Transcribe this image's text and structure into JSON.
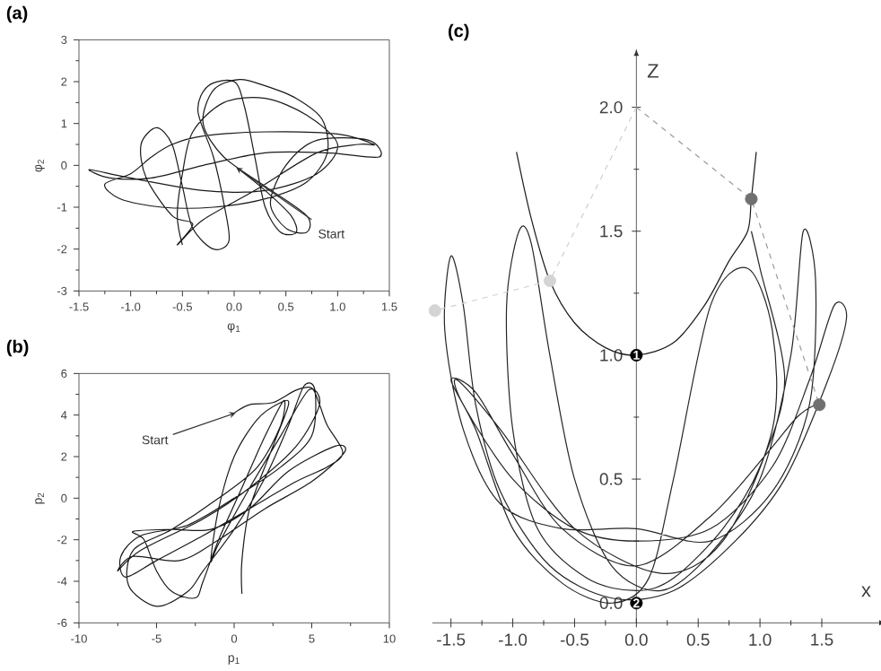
{
  "chart_data": [
    {
      "type": "line",
      "title": "(a)",
      "xlabel": "φ$_{1}$",
      "ylabel": "φ$_{2}$",
      "xlim": [
        -1.5,
        1.5
      ],
      "ylim": [
        -3,
        3
      ],
      "xticks": [
        -1.5,
        {
          "value": -1,
          "label": "-1.0"
        },
        -0.5,
        {
          "value": 0,
          "label": "0.0"
        },
        0.5,
        {
          "value": 1,
          "label": "1.0"
        },
        1.5
      ],
      "yticks": [
        -3,
        -2,
        -1,
        0,
        1,
        2,
        3
      ],
      "annotations": [
        {
          "text": "Start",
          "x": 0.02,
          "y": -0.05
        }
      ],
      "series": [
        {
          "color": "#1a1a1a",
          "x": [
            0.05,
            0.3,
            0.55,
            0.6,
            0.45,
            0.3,
            0.2,
            0.1,
            0.0,
            -0.25,
            -0.35,
            -0.2,
            -0.1,
            -0.05,
            -0.2,
            -0.4,
            -0.5,
            -0.6,
            -0.75,
            -0.9,
            -0.85,
            -0.6,
            -0.4,
            -0.55,
            -0.3,
            0.2,
            0.8,
            1.2,
            1.35,
            1.0,
            0.3,
            -0.3,
            -0.6,
            -0.8,
            -1.0,
            -1.25,
            -1.1,
            -0.7,
            -0.2,
            0.3,
            0.7,
            0.9,
            0.85,
            0.6,
            0.3,
            0.05,
            -0.2,
            -0.3,
            -0.1,
            0.3,
            0.7,
            0.7,
            0.5,
            0.35,
            0.5,
            0.8,
            1.3,
            1.4,
            0.9,
            0.3,
            -0.3,
            -0.8,
            -1.2,
            -1.4,
            -1.0,
            -0.3,
            0.3,
            0.8,
            1.0,
            0.7,
            0.3,
            -0.1,
            -0.4,
            -0.5,
            -0.55,
            -0.5
          ],
          "values": [
            -0.1,
            -0.6,
            -1.2,
            -1.6,
            -1.6,
            -1.0,
            0.2,
            1.4,
            2.0,
            1.9,
            1.3,
            0.2,
            -0.9,
            -1.8,
            -2.0,
            -1.5,
            -0.5,
            0.5,
            0.9,
            0.5,
            -0.3,
            -1.2,
            -1.4,
            -1.9,
            -1.3,
            -0.6,
            0.3,
            0.5,
            0.5,
            0.75,
            0.8,
            0.7,
            0.5,
            0.2,
            -0.2,
            -0.45,
            -0.8,
            -1.0,
            -1.0,
            -0.8,
            -0.4,
            0.3,
            1.1,
            1.6,
            1.9,
            2.05,
            1.8,
            1.0,
            0.2,
            -0.5,
            -1.2,
            -1.6,
            -1.5,
            -0.9,
            0.0,
            0.6,
            0.6,
            0.2,
            0.3,
            0.3,
            0.0,
            -0.3,
            -0.3,
            -0.1,
            -0.3,
            -0.6,
            -0.6,
            -0.2,
            0.5,
            1.2,
            1.6,
            1.5,
            0.8,
            -0.2,
            -1.2,
            -1.9
          ]
        }
      ]
    },
    {
      "type": "line",
      "title": "(b)",
      "xlabel": "p$_{1}$",
      "ylabel": "p$_{2}$",
      "xlim": [
        -10,
        10
      ],
      "ylim": [
        -6,
        6
      ],
      "xticks": [
        -10,
        -5,
        0,
        5,
        10
      ],
      "yticks": [
        -6,
        -4,
        -2,
        0,
        2,
        4,
        6
      ],
      "annotations": [
        {
          "text": "Start",
          "x": 0.1,
          "y": 4.1
        }
      ],
      "series": [
        {
          "color": "#1a1a1a",
          "x": [
            0,
            1,
            2.5,
            4,
            5,
            5.5,
            6,
            7,
            6,
            4,
            1,
            -2,
            -5,
            -7,
            -7.3,
            -6,
            -3,
            0,
            3,
            5,
            5.2,
            4.5,
            3.5,
            2,
            0,
            -2,
            -3,
            -5,
            -6.8,
            -6.5,
            -4,
            -1,
            1.5,
            3,
            3.2,
            2,
            0.5,
            -1,
            -2,
            -2.5,
            -4,
            -5,
            -5.8,
            -6.5,
            -4,
            -1.5,
            1,
            3.5,
            6.5,
            7.1,
            5,
            2,
            -1,
            -3.5,
            -6.5,
            -7.5,
            -6,
            -2,
            1,
            4,
            5.5,
            4.8,
            3,
            1,
            -1,
            -1.5,
            -1,
            0,
            1.5,
            3,
            3.5,
            2.5,
            1,
            0.5,
            0.5
          ],
          "values": [
            4.1,
            4.5,
            4.6,
            5.2,
            5.3,
            4.5,
            3.5,
            2.2,
            1.5,
            0.8,
            -0.5,
            -1.8,
            -3,
            -3.8,
            -2.8,
            -1.8,
            -1.3,
            0,
            1.5,
            3,
            5.2,
            5.4,
            3.5,
            1,
            -1.5,
            -3.5,
            -4.5,
            -5.2,
            -4.2,
            -2.5,
            -1.5,
            0,
            1.5,
            3.5,
            4.7,
            3,
            0.5,
            -2,
            -4,
            -4.8,
            -4.5,
            -3.5,
            -2,
            -1.6,
            -1.5,
            -1.5,
            -0.5,
            1.3,
            2.5,
            2.2,
            0.8,
            -0.5,
            -2,
            -3,
            -2.8,
            -3.5,
            -2.5,
            -1,
            0.5,
            2.5,
            4.5,
            5.2,
            3,
            0.5,
            -2.2,
            -3,
            -0.5,
            2,
            3.8,
            4.6,
            4.5,
            2.5,
            -0.5,
            -3,
            -4.6
          ]
        }
      ]
    },
    {
      "type": "line",
      "title": "(c)",
      "xlabel": "x",
      "ylabel": "Z",
      "xlim": [
        -1.65,
        1.95
      ],
      "ylim": [
        -0.08,
        2.2
      ],
      "xticks": [
        -1.5,
        {
          "value": -1,
          "label": "-1.0"
        },
        -0.5,
        {
          "value": 0,
          "label": "0.0"
        },
        0.5,
        {
          "value": 1,
          "label": "1.0"
        },
        1.5
      ],
      "yticks": [
        {
          "value": 0,
          "label": "0.0"
        },
        0.5,
        {
          "value": 1,
          "label": "1.0"
        },
        1.5,
        {
          "value": 2,
          "label": "2.0"
        }
      ],
      "annotations": [
        {
          "text": "1",
          "x": 0,
          "y": 1
        },
        {
          "text": "2",
          "x": 0,
          "y": 0
        }
      ],
      "series": [
        {
          "type": "line",
          "color": "#262626",
          "x": [
            0.93,
            1.0,
            1.2,
            1.0,
            0.7,
            0.3,
            0,
            -0.4,
            -0.8,
            -1.0,
            -1.05,
            -0.95,
            -0.85,
            -0.7,
            -0.5,
            -0.2,
            0.2,
            0.6,
            1.0,
            1.25,
            1.35,
            1.45,
            1.4,
            1.1,
            0.6,
            0,
            -0.6,
            -1.1,
            -1.4,
            -1.55,
            -1.5,
            -1.4,
            -1.3,
            -1.1,
            -0.7,
            -0.2,
            0.3,
            0.8,
            1.2,
            1.55,
            1.7,
            1.6,
            1.4,
            1.1,
            0.6,
            0,
            -0.5,
            -1.0,
            -1.4,
            -1.45,
            -1.1,
            -0.5,
            0.2,
            0.7,
            1.1,
            1.1,
            0.9,
            0.6,
            0.3,
            0.1,
            -0.2,
            -0.6,
            -1.0,
            -1.3,
            -1.5,
            -1.3,
            -1.0,
            -0.6,
            0,
            0.6,
            1.05,
            1.3,
            1.45
          ],
          "values": [
            1.5,
            1.35,
            0.9,
            0.55,
            0.3,
            0.1,
            0.05,
            0.1,
            0.3,
            0.7,
            1.2,
            1.5,
            1.45,
            1.0,
            0.5,
            0.15,
            0.05,
            0.2,
            0.5,
            1.0,
            1.5,
            1.3,
            0.8,
            0.45,
            0.25,
            0.3,
            0.3,
            0.4,
            0.7,
            1.1,
            1.4,
            1.2,
            0.8,
            0.45,
            0.15,
            0.02,
            0.05,
            0.25,
            0.5,
            0.9,
            1.15,
            1.2,
            0.9,
            0.55,
            0.3,
            0.25,
            0.3,
            0.5,
            0.8,
            0.9,
            0.7,
            0.3,
            0.12,
            0.25,
            0.7,
            1.1,
            1.35,
            1.2,
            0.5,
            0.1,
            0.0,
            0.08,
            0.3,
            0.7,
            0.9,
            0.85,
            0.6,
            0.3,
            0.15,
            0.35,
            0.6,
            0.75,
            0.8
          ]
        },
        {
          "type": "line",
          "color": "#1a1a1a",
          "x": [
            -0.97,
            -0.85,
            -0.7,
            -0.5,
            -0.25,
            0,
            0.3,
            0.55,
            0.75,
            0.9,
            0.93,
            0.97
          ],
          "values": [
            1.82,
            1.55,
            1.3,
            1.13,
            1.03,
            1.0,
            1.05,
            1.2,
            1.38,
            1.5,
            1.63,
            1.82
          ]
        },
        {
          "type": "line",
          "color": "#cfcfcf",
          "line_style": "dashed",
          "x": [
            0,
            -0.7,
            -1.63
          ],
          "values": [
            2.0,
            1.3,
            1.18
          ]
        },
        {
          "type": "line",
          "color": "#9a9a9a",
          "line_style": "dashed",
          "x": [
            0,
            0.93,
            1.48
          ],
          "values": [
            2.0,
            1.63,
            0.8
          ]
        },
        {
          "type": "scatter",
          "marker": "circle",
          "color": "#d4d4d4",
          "x": [
            -0.7,
            -1.63
          ],
          "values": [
            1.3,
            1.18
          ]
        },
        {
          "type": "scatter",
          "marker": "circle",
          "color": "#707070",
          "x": [
            0.93,
            1.48
          ],
          "values": [
            1.63,
            0.8
          ]
        },
        {
          "type": "scatter",
          "marker": "circle",
          "color": "#000000",
          "x": [
            0,
            0
          ],
          "values": [
            1.0,
            0.0
          ]
        }
      ]
    }
  ]
}
